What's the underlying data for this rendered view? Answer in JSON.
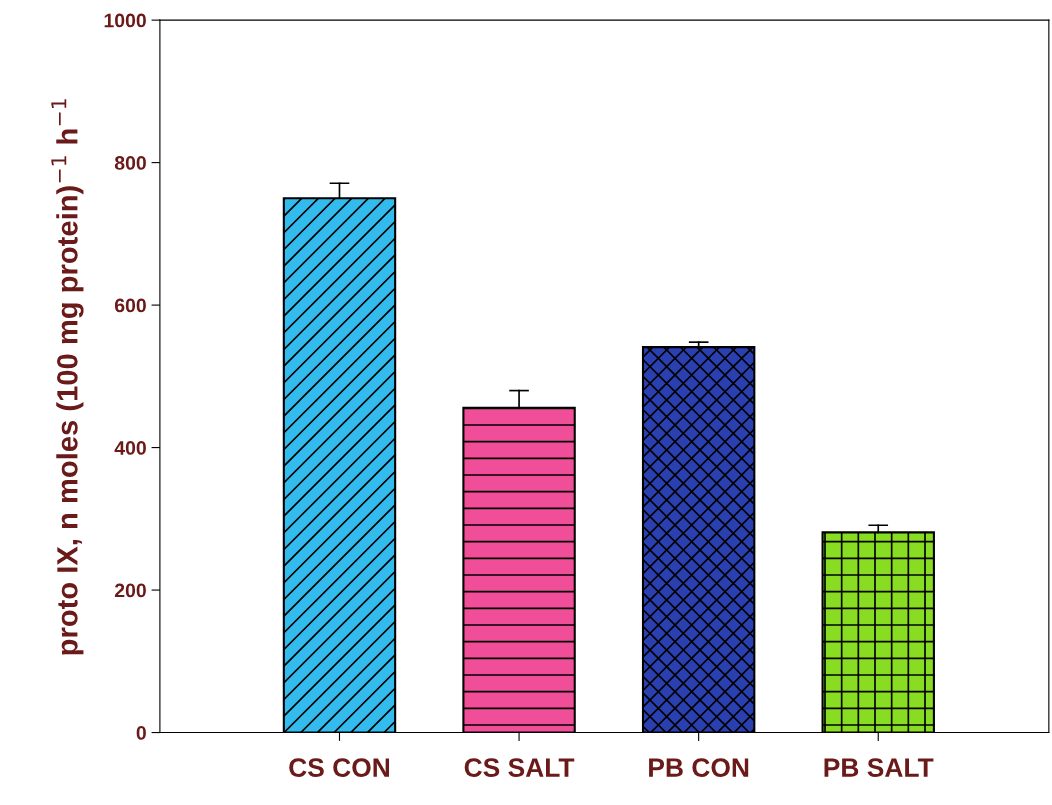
{
  "chart_data": {
    "type": "bar",
    "ylabel": "proto IX, n moles (100 mg protein)$^{−1}$ h$^{−1}$",
    "categories": [
      "CS CON",
      "CS SALT",
      "PB CON",
      "PB SALT"
    ],
    "values": [
      750,
      456,
      541,
      281
    ],
    "errors": [
      [
        750,
        771
      ],
      [
        456,
        480
      ],
      [
        541,
        548
      ],
      [
        281,
        291
      ]
    ],
    "colors": [
      "#33bbee",
      "#f04e98",
      "#2a3fb0",
      "#88dd22"
    ],
    "ylim": [
      0,
      1000
    ],
    "yticks": [
      0,
      200,
      400,
      600,
      800,
      1000
    ],
    "grid": false,
    "legend": false
  }
}
